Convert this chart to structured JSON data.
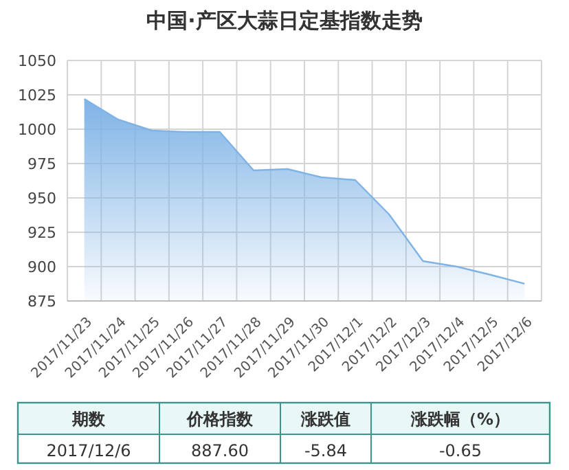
{
  "chart_data": {
    "type": "area",
    "title": "中国·产区大蒜日定基指数走势",
    "categories": [
      "2017/11/23",
      "2017/11/24",
      "2017/11/25",
      "2017/11/26",
      "2017/11/27",
      "2017/11/28",
      "2017/11/29",
      "2017/11/30",
      "2017/12/1",
      "2017/12/2",
      "2017/12/3",
      "2017/12/4",
      "2017/12/5",
      "2017/12/6"
    ],
    "values": [
      1022,
      1007,
      999,
      998,
      998,
      970,
      971,
      965,
      963,
      938,
      904,
      900,
      894,
      887.6
    ],
    "color": "#7fb3e6",
    "ylim": [
      875,
      1050
    ],
    "yticks": [
      875,
      900,
      925,
      950,
      975,
      1000,
      1025,
      1050
    ],
    "grid": true,
    "annotations": [
      "期数",
      "价格指数",
      "涨跌值",
      "涨跌幅（%）",
      "2017/12/6",
      "887.60",
      "-5.84",
      "-0.65"
    ]
  }
}
